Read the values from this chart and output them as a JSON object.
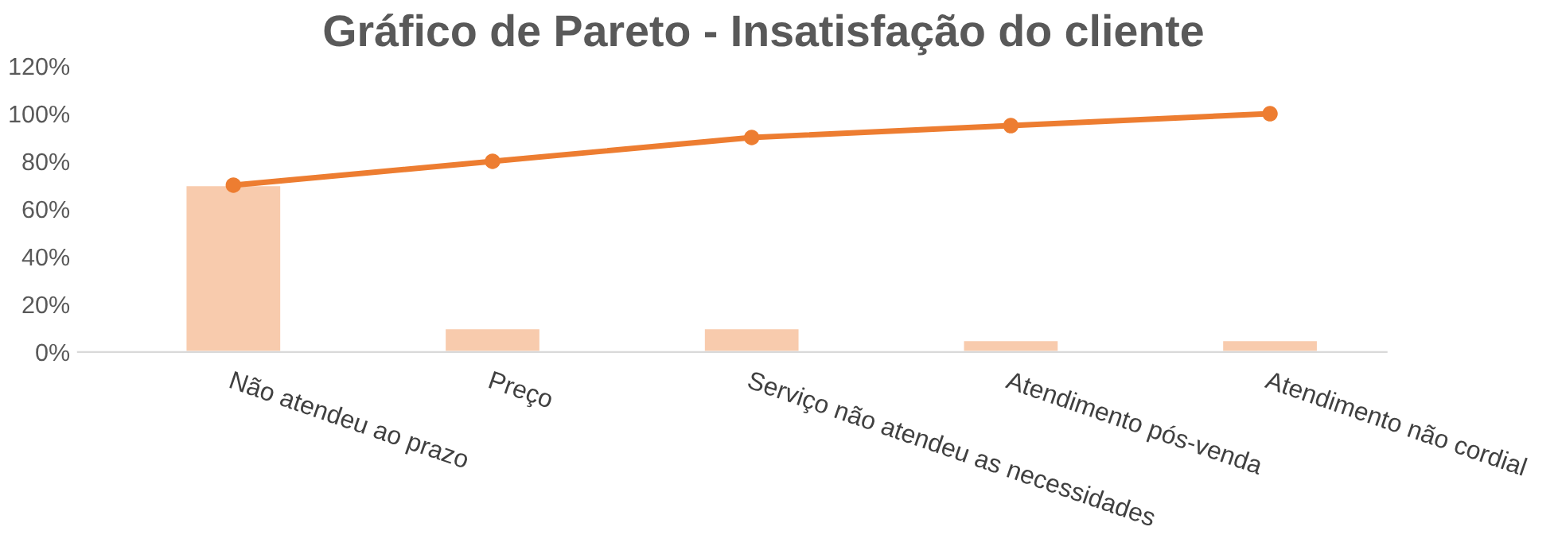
{
  "chart_data": {
    "type": "bar",
    "title": "Gráfico de Pareto - Insatisfação do cliente",
    "categories": [
      "Não atendeu ao prazo",
      "Preço",
      "Serviço não atendeu as necessidades",
      "Atendimento pós-venda",
      "Atendimento não cordial"
    ],
    "series": [
      {
        "color": "#f8cbad",
        "values": [
          70,
          10,
          10,
          5,
          5
        ]
      },
      {
        "type": "line",
        "color": "#ed7d31",
        "values": [
          70,
          80,
          90,
          95,
          100
        ],
        "marker": "circle"
      }
    ],
    "ylim": [
      0,
      120
    ],
    "yticks": [
      {
        "value": 0,
        "label": "0%"
      },
      {
        "value": 20,
        "label": "20%"
      },
      {
        "value": 40,
        "label": "40%"
      },
      {
        "value": 60,
        "label": "60%"
      },
      {
        "value": 80,
        "label": "80%"
      },
      {
        "value": 100,
        "label": "100%"
      },
      {
        "value": 120,
        "label": "120%"
      }
    ],
    "grid": false,
    "legend": false
  }
}
